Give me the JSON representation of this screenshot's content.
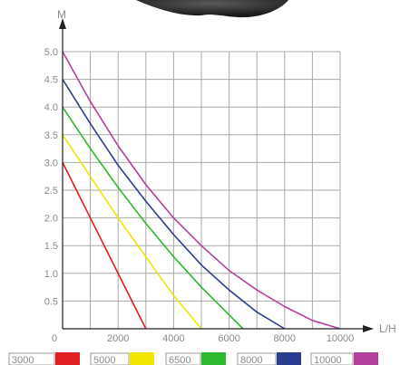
{
  "chart_data": {
    "type": "line",
    "xlabel": "L/H",
    "ylabel": "M",
    "xlim": [
      0,
      10000
    ],
    "ylim": [
      0,
      5.0
    ],
    "x_ticks": [
      "0",
      "2000",
      "4000",
      "6000",
      "8000",
      "10000"
    ],
    "y_ticks": [
      "0.5",
      "1.0",
      "1.5",
      "2.0",
      "2.5",
      "3.0",
      "3.5",
      "4.0",
      "4.5",
      "5.0"
    ],
    "grid": true,
    "legend_position": "bottom",
    "series": [
      {
        "name": "3000",
        "color": "#e02020",
        "x": [
          0,
          3000
        ],
        "y": [
          3.0,
          0
        ]
      },
      {
        "name": "5000",
        "color": "#f2e600",
        "x": [
          0,
          1000,
          2000,
          3000,
          4000,
          5000
        ],
        "y": [
          3.5,
          2.75,
          2.0,
          1.3,
          0.6,
          0
        ]
      },
      {
        "name": "6500",
        "color": "#2db82d",
        "x": [
          0,
          1000,
          2000,
          3000,
          4000,
          5000,
          6000,
          6500
        ],
        "y": [
          4.0,
          3.25,
          2.55,
          1.9,
          1.3,
          0.75,
          0.25,
          0
        ]
      },
      {
        "name": "8000",
        "color": "#2b3d8f",
        "x": [
          0,
          1000,
          2000,
          3000,
          4000,
          5000,
          6000,
          7000,
          8000
        ],
        "y": [
          4.5,
          3.7,
          2.95,
          2.3,
          1.7,
          1.15,
          0.7,
          0.3,
          0
        ]
      },
      {
        "name": "10000",
        "color": "#b0409a",
        "x": [
          0,
          1000,
          2000,
          3000,
          4000,
          5000,
          6000,
          7000,
          8000,
          9000,
          10000
        ],
        "y": [
          5.0,
          4.1,
          3.3,
          2.6,
          2.0,
          1.5,
          1.05,
          0.7,
          0.4,
          0.15,
          0
        ]
      }
    ]
  }
}
